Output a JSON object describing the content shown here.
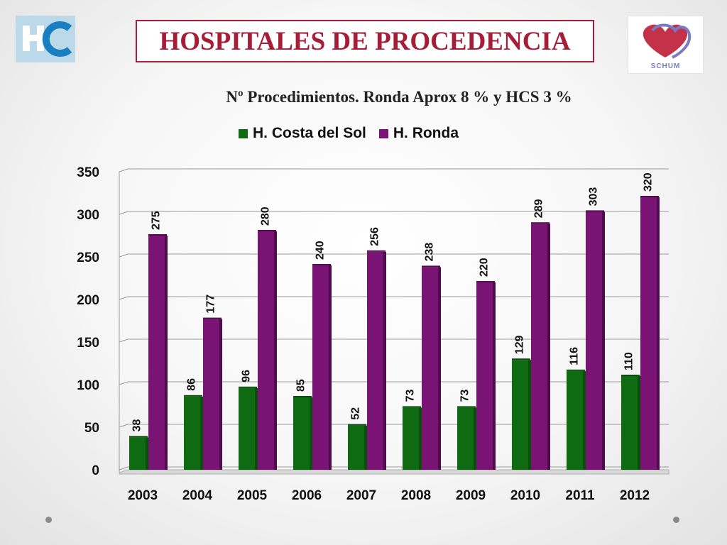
{
  "header": {
    "title": "HOSPITALES DE PROCEDENCIA",
    "subtitle": "Nº Procedimientos. Ronda Aprox 8 % y HCS 3 %",
    "left_logo_text": "HC",
    "right_logo_text": "SCHUM"
  },
  "colors": {
    "title": "#a51d37",
    "costa": "#0f6b12",
    "ronda": "#7a1474"
  },
  "chart_data": {
    "type": "bar",
    "title": "Nº Procedimientos. Ronda Aprox 8 % y HCS 3 %",
    "categories": [
      "2003",
      "2004",
      "2005",
      "2006",
      "2007",
      "2008",
      "2009",
      "2010",
      "2011",
      "2012"
    ],
    "series": [
      {
        "name": "H. Costa del Sol",
        "values": [
          38,
          86,
          96,
          85,
          52,
          73,
          73,
          129,
          116,
          110
        ]
      },
      {
        "name": "H. Ronda",
        "values": [
          275,
          177,
          280,
          240,
          256,
          238,
          220,
          289,
          303,
          320
        ]
      }
    ],
    "ylim": [
      0,
      350
    ],
    "yticks": [
      "0",
      "50",
      "100",
      "150",
      "200",
      "250",
      "300",
      "350"
    ],
    "xlabel": "",
    "ylabel": "",
    "legend_position": "top",
    "grid": true
  }
}
